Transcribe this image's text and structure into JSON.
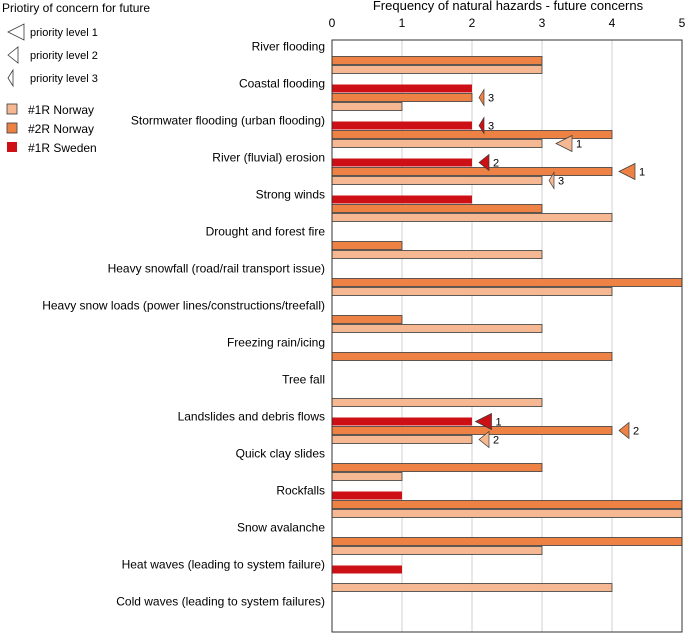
{
  "legend": {
    "priority_title": "Priotiry of concern for future",
    "priority_levels": [
      {
        "level": 1,
        "label": "priority level  1"
      },
      {
        "level": 2,
        "label": "priority level  2"
      },
      {
        "level": 3,
        "label": "priority level  3"
      }
    ]
  },
  "chart_data": {
    "type": "bar",
    "orientation": "horizontal",
    "title": "Frequency of natural hazards - future concerns",
    "xlim": [
      0,
      5
    ],
    "xticks": [
      0,
      1,
      2,
      3,
      4,
      5
    ],
    "grid": true,
    "legend_position": "top-left",
    "categories": [
      "River flooding",
      "Coastal flooding",
      "Stormwater flooding (urban flooding)",
      "River (fluvial) erosion",
      "Strong winds",
      "Drought and forest fire",
      "Heavy snowfall (road/rail transport issue)",
      "Heavy snow loads (power lines/constructions/treefall)",
      "Freezing rain/icing",
      "Tree fall",
      "Landslides and debris flows",
      "Quick clay slides",
      "Rockfalls",
      "Snow avalanche",
      "Heat waves (leading to system failure)",
      "Cold waves (leading to system failures)"
    ],
    "series": [
      {
        "name": "#1R Sweden",
        "color": "#cc1016",
        "values": [
          0,
          2,
          2,
          2,
          2,
          0,
          0,
          0,
          0,
          0,
          2,
          0,
          1,
          0,
          1,
          0
        ]
      },
      {
        "name": "#2R Norway",
        "color": "#ee8244",
        "values": [
          3,
          2,
          4,
          4,
          3,
          1,
          5,
          1,
          4,
          0,
          4,
          3,
          5,
          5,
          0,
          0
        ]
      },
      {
        "name": "#1R Norway",
        "color": "#f5b892",
        "values": [
          3,
          1,
          3,
          3,
          4,
          3,
          4,
          3,
          0,
          3,
          2,
          1,
          5,
          3,
          4,
          0
        ]
      }
    ],
    "priority_markers": [
      {
        "category": "Coastal flooding",
        "series": "#2R Norway",
        "x": 2.1,
        "priority": 3,
        "label": "3"
      },
      {
        "category": "Stormwater flooding (urban flooding)",
        "series": "#1R Sweden",
        "x": 2.1,
        "priority": 3,
        "label": "3"
      },
      {
        "category": "Stormwater flooding (urban flooding)",
        "series": "#1R Norway",
        "x": 3.2,
        "priority": 1,
        "label": "1"
      },
      {
        "category": "River (fluvial) erosion",
        "series": "#1R Sweden",
        "x": 2.1,
        "priority": 2,
        "label": "2"
      },
      {
        "category": "River (fluvial) erosion",
        "series": "#2R Norway",
        "x": 4.1,
        "priority": 1,
        "label": "1"
      },
      {
        "category": "River (fluvial) erosion",
        "series": "#1R Norway",
        "x": 3.1,
        "priority": 3,
        "label": "3"
      },
      {
        "category": "Landslides and debris flows",
        "series": "#1R Sweden",
        "x": 2.05,
        "priority": 1,
        "label": "1"
      },
      {
        "category": "Landslides and debris flows",
        "series": "#2R Norway",
        "x": 4.1,
        "priority": 2,
        "label": "2"
      },
      {
        "category": "Landslides and debris flows",
        "series": "#1R Norway",
        "x": 2.1,
        "priority": 2,
        "label": "2"
      }
    ]
  }
}
